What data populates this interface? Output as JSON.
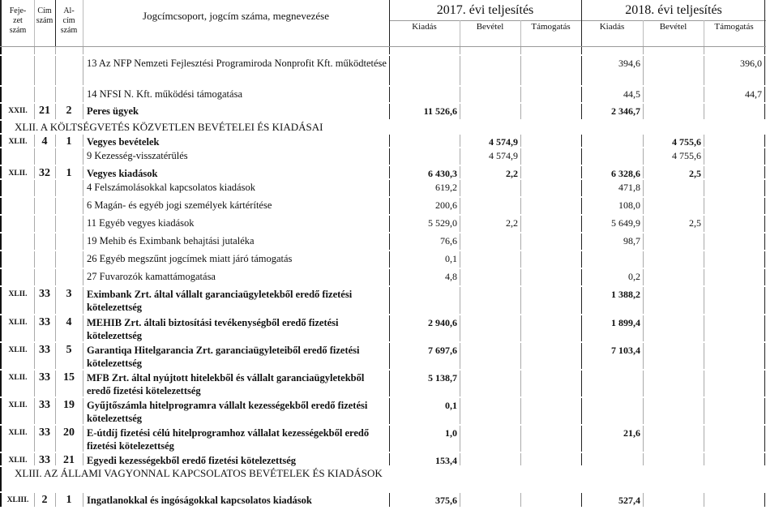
{
  "header": {
    "fejezet": "Feje-\nzet\nszám",
    "cim": "Cím\nszám",
    "alcim": "Al-\ncím\nszám",
    "description": "Jogcímcsoport, jogcím száma, megnevezése",
    "year_2017": "2017. évi teljesítés",
    "year_2018": "2018. évi teljesítés",
    "subcols": [
      "Kiadás",
      "Bevétel",
      "Támogatás",
      "Kiadás",
      "Bevétel",
      "Támogatás"
    ]
  },
  "rows": [
    {
      "type": "item",
      "fej": "",
      "cim": "",
      "alcim": "",
      "desc": "13 Az NFP Nemzeti Fejlesztési Programiroda Nonprofit Kft. működtetése",
      "bold": false,
      "v": [
        "",
        "",
        "",
        "394,6",
        "",
        "396,0"
      ]
    },
    {
      "type": "item",
      "fej": "",
      "cim": "",
      "alcim": "",
      "desc": "14 NFSI N. Kft. működési támogatása",
      "bold": false,
      "v": [
        "",
        "",
        "",
        "44,5",
        "",
        "44,7"
      ]
    },
    {
      "type": "item",
      "fej": "XXII.",
      "cim": "21",
      "alcim": "2",
      "desc": "Peres ügyek",
      "bold": true,
      "v": [
        "11 526,6",
        "",
        "",
        "2 346,7",
        "",
        ""
      ]
    },
    {
      "type": "heading",
      "desc": "XLII. A KÖLTSÉGVETÉS KÖZVETLEN BEVÉTELEI ÉS KIADÁSAI"
    },
    {
      "type": "item",
      "fej": "XLII.",
      "cim": "4",
      "alcim": "1",
      "desc": "Vegyes bevételek",
      "bold": true,
      "v": [
        "",
        "4 574,9",
        "",
        "",
        "4 755,6",
        ""
      ]
    },
    {
      "type": "item",
      "fej": "",
      "cim": "",
      "alcim": "",
      "desc": "9 Kezesség-visszatérülés",
      "bold": false,
      "v": [
        "",
        "4 574,9",
        "",
        "",
        "4 755,6",
        ""
      ]
    },
    {
      "type": "item",
      "fej": "XLII.",
      "cim": "32",
      "alcim": "1",
      "desc": "Vegyes kiadások",
      "bold": true,
      "v": [
        "6 430,3",
        "2,2",
        "",
        "6 328,6",
        "2,5",
        ""
      ]
    },
    {
      "type": "item",
      "fej": "",
      "cim": "",
      "alcim": "",
      "desc": "4 Felszámolásokkal kapcsolatos kiadások",
      "bold": false,
      "v": [
        "619,2",
        "",
        "",
        "471,8",
        "",
        ""
      ]
    },
    {
      "type": "item",
      "fej": "",
      "cim": "",
      "alcim": "",
      "desc": "6 Magán- és egyéb jogi személyek kártérítése",
      "bold": false,
      "v": [
        "200,6",
        "",
        "",
        "108,0",
        "",
        ""
      ]
    },
    {
      "type": "item",
      "fej": "",
      "cim": "",
      "alcim": "",
      "desc": "11 Egyéb vegyes kiadások",
      "bold": false,
      "v": [
        "5 529,0",
        "2,2",
        "",
        "5 649,9",
        "2,5",
        ""
      ]
    },
    {
      "type": "item",
      "fej": "",
      "cim": "",
      "alcim": "",
      "desc": "19 Mehib és Eximbank behajtási jutaléka",
      "bold": false,
      "v": [
        "76,6",
        "",
        "",
        "98,7",
        "",
        ""
      ]
    },
    {
      "type": "item",
      "fej": "",
      "cim": "",
      "alcim": "",
      "desc": "26 Egyéb megszűnt jogcímek miatt járó támogatás",
      "bold": false,
      "v": [
        "0,1",
        "",
        "",
        "",
        "",
        ""
      ]
    },
    {
      "type": "item",
      "fej": "",
      "cim": "",
      "alcim": "",
      "desc": "27 Fuvarozók kamattámogatása",
      "bold": false,
      "v": [
        "4,8",
        "",
        "",
        "0,2",
        "",
        ""
      ]
    },
    {
      "type": "item",
      "fej": "XLII.",
      "cim": "33",
      "alcim": "3",
      "desc": "Eximbank Zrt. által vállalt garanciaügyletekből eredő fizetési kötelezettség",
      "bold": true,
      "v": [
        "",
        "",
        "",
        "1 388,2",
        "",
        ""
      ]
    },
    {
      "type": "item",
      "fej": "XLII.",
      "cim": "33",
      "alcim": "4",
      "desc": "MEHIB Zrt. általi biztosítási tevékenységből eredő fizetési kötelezettség",
      "bold": true,
      "v": [
        "2 940,6",
        "",
        "",
        "1 899,4",
        "",
        ""
      ]
    },
    {
      "type": "item",
      "fej": "XLII.",
      "cim": "33",
      "alcim": "5",
      "desc": "Garantiqa Hitelgarancia Zrt. garanciaügyleteiből eredő fizetési kötelezettség",
      "bold": true,
      "v": [
        "7 697,6",
        "",
        "",
        "7 103,4",
        "",
        ""
      ]
    },
    {
      "type": "item",
      "fej": "XLII.",
      "cim": "33",
      "alcim": "15",
      "desc": "MFB Zrt. által nyújtott hitelekből és vállalt garanciaügyletekből eredő fizetési kötelezettség",
      "bold": true,
      "v": [
        "5 138,7",
        "",
        "",
        "",
        "",
        ""
      ]
    },
    {
      "type": "item",
      "fej": "XLII.",
      "cim": "33",
      "alcim": "19",
      "desc": "Gyűjtőszámla hitelprogramra vállalt kezességekből eredő fizetési kötelezettség",
      "bold": true,
      "v": [
        "0,1",
        "",
        "",
        "",
        "",
        ""
      ]
    },
    {
      "type": "item",
      "fej": "XLII.",
      "cim": "33",
      "alcim": "20",
      "desc": "E-útdíj fizetési célú hitelprogramhoz vállalat kezességekből eredő fizetési kötelezettség",
      "bold": true,
      "v": [
        "1,0",
        "",
        "",
        "21,6",
        "",
        ""
      ]
    },
    {
      "type": "item",
      "fej": "XLII.",
      "cim": "33",
      "alcim": "21",
      "desc": "Egyedi kezességekből eredő fizetési kötelezettség",
      "bold": true,
      "v": [
        "153,4",
        "",
        "",
        "",
        "",
        ""
      ]
    },
    {
      "type": "heading",
      "desc": "XLIII. AZ ÁLLAMI VAGYONNAL KAPCSOLATOS BEVÉTELEK ÉS KIADÁSOK"
    },
    {
      "type": "item",
      "fej": "XLIII.",
      "cim": "2",
      "alcim": "1",
      "desc": "Ingatlanokkal és ingóságokkal kapcsolatos kiadások",
      "bold": true,
      "v": [
        "375,6",
        "",
        "",
        "527,4",
        "",
        ""
      ]
    }
  ]
}
